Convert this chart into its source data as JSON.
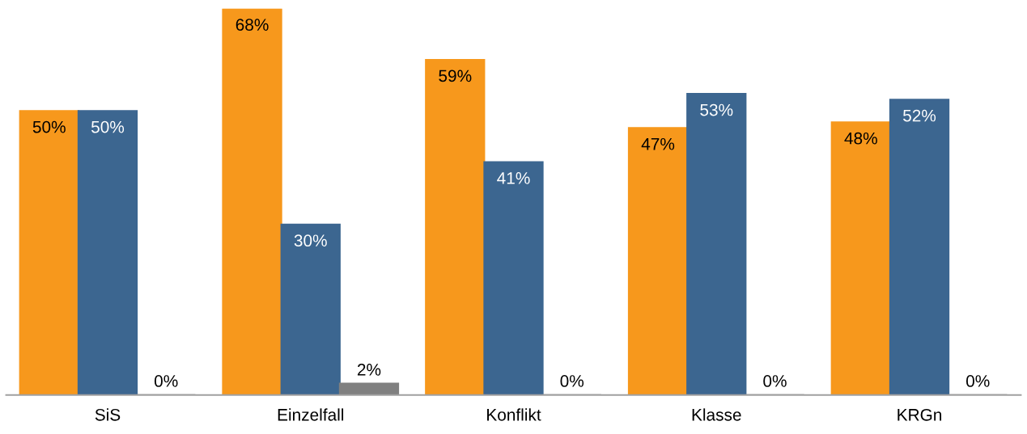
{
  "chart_data": {
    "type": "bar",
    "categories": [
      "SiS",
      "Einzelfall",
      "Konflikt",
      "Klasse",
      "KRGn"
    ],
    "series": [
      {
        "color": "#f7981c",
        "values": [
          50,
          68,
          59,
          47,
          48
        ],
        "value_labels": [
          "50%",
          "68%",
          "59%",
          "47%",
          "48%"
        ]
      },
      {
        "color": "#3c6690",
        "values": [
          50,
          30,
          41,
          53,
          52
        ],
        "value_labels": [
          "50%",
          "30%",
          "41%",
          "53%",
          "52%"
        ]
      },
      {
        "color": "#808080",
        "values": [
          0,
          2,
          0,
          0,
          0
        ],
        "value_labels": [
          "0%",
          "2%",
          "0%",
          "0%",
          "0%"
        ]
      }
    ],
    "grid": false,
    "legend": false
  }
}
